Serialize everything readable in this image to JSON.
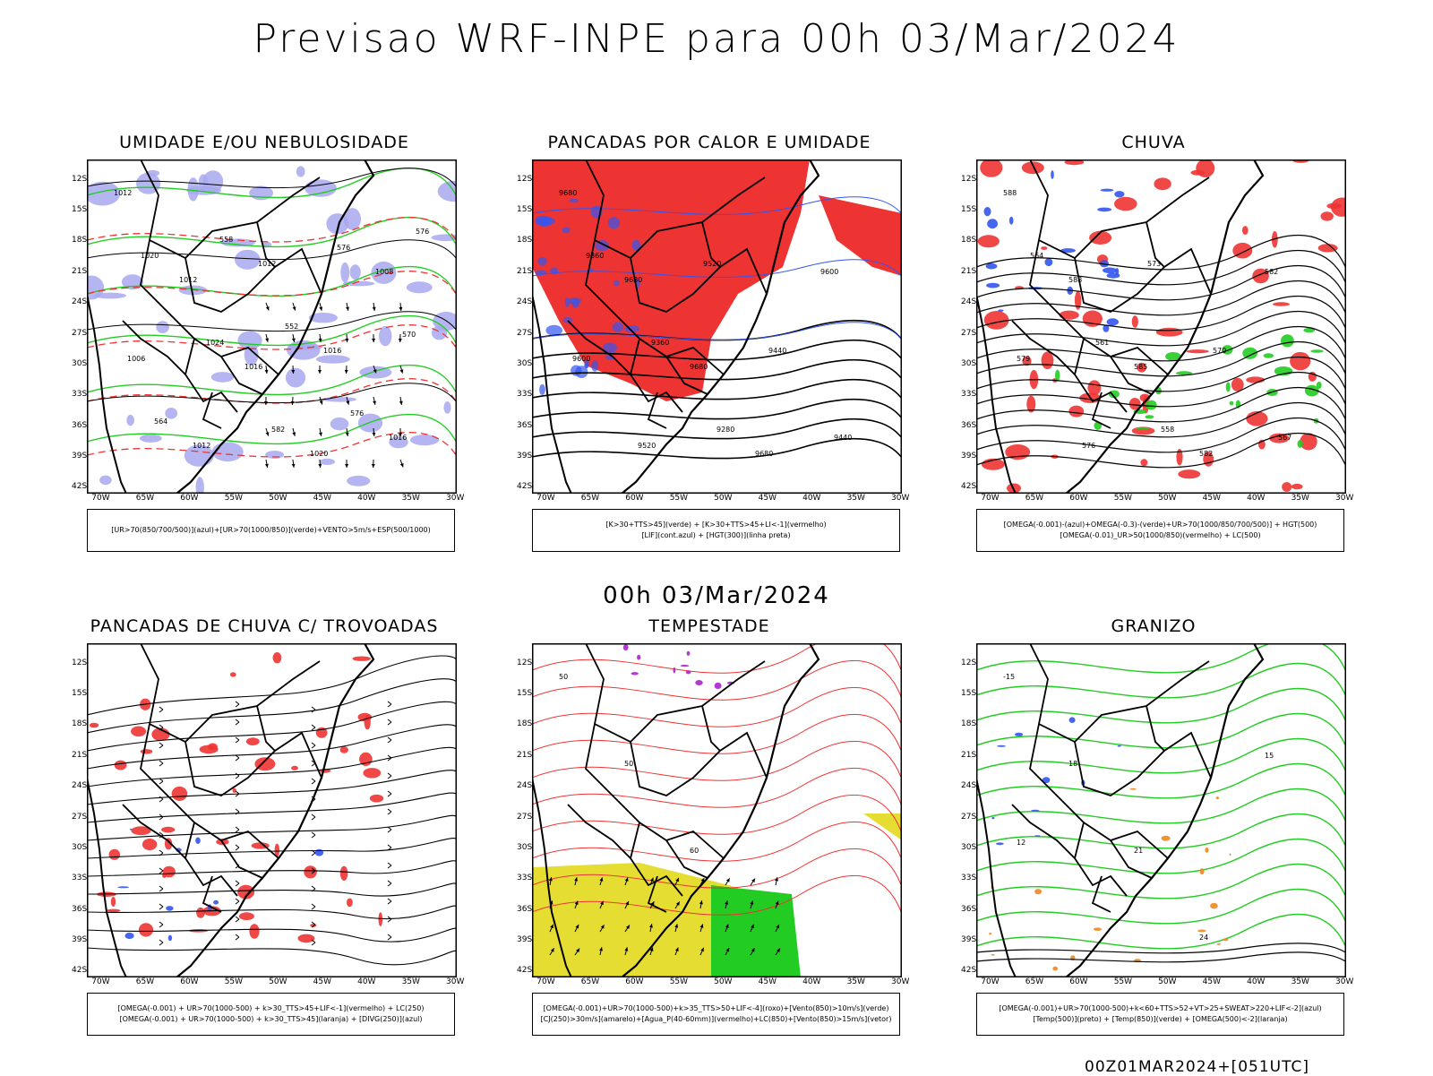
{
  "title": "Previsao WRF-INPE  para 00h 03/Mar/2024",
  "middle_label": "00h 03/Mar/2024",
  "footer": "00Z01MAR2024+[051UTC]",
  "lat_ticks": [
    "12S",
    "15S",
    "18S",
    "21S",
    "24S",
    "27S",
    "30S",
    "33S",
    "36S",
    "39S",
    "42S"
  ],
  "lon_ticks": [
    "70W",
    "65W",
    "60W",
    "55W",
    "50W",
    "45W",
    "40W",
    "35W",
    "30W"
  ],
  "colors": {
    "green": "#22cc22",
    "red": "#ee3333",
    "blue": "#3355ee",
    "lavender": "#a8a8ee",
    "yellow": "#e6dd33",
    "purple": "#aa22cc",
    "orange": "#ee8822"
  },
  "panels": [
    {
      "id": "umidade",
      "title": "UMIDADE E/OU NEBULOSIDADE",
      "legend": [
        "[UR>70(850/700/500)](azul)+[UR>70(1000/850)](verde)+VENTO>5m/s+ESP(500/1000)"
      ],
      "labels": [
        "1012",
        "1012",
        "1016",
        "1020",
        "1008",
        "1006",
        "1012",
        "1012",
        "1016",
        "1016",
        "1020",
        "1024",
        "582",
        "576",
        "570",
        "564",
        "558",
        "552",
        "576",
        "576"
      ]
    },
    {
      "id": "pancadas_calor",
      "title": "PANCADAS POR CALOR E UMIDADE",
      "legend": [
        "[K>30+TTS>45](verde) + [K>30+TTS>45+LI<-1](vermelho)",
        "[LIF](cont.azul) + [HGT(300)](linha preta)"
      ],
      "labels": [
        "9680",
        "9680",
        "9680",
        "9680",
        "9600",
        "9600",
        "9520",
        "9520",
        "9440",
        "9440",
        "9360",
        "9360",
        "9280"
      ]
    },
    {
      "id": "chuva",
      "title": "CHUVA",
      "legend": [
        "[OMEGA(-0.001)-(azul)+OMEGA(-0.3)-(verde)+UR>70(1000/850/700/500)] + HGT(500)",
        "[OMEGA(-0.01)_UR>50(1000/850)(vermelho) + LC(500)"
      ],
      "labels": [
        "588",
        "588",
        "585",
        "582",
        "582",
        "579",
        "576",
        "573",
        "570",
        "567",
        "564",
        "561",
        "558"
      ]
    },
    {
      "id": "pancadas_trovoadas",
      "title": "PANCADAS DE CHUVA C/ TROVOADAS",
      "legend": [
        "[OMEGA(-0.001) + UR>70(1000-500) + k>30_TTS>45+LIF<-1](vermelho) + LC(250)",
        "[OMEGA(-0.001) + UR>70(1000-500) + k>30_TTS>45](laranja) + [DIVG(250)](azul)"
      ],
      "labels": []
    },
    {
      "id": "tempestade",
      "title": "TEMPESTADE",
      "legend": [
        "[OMEGA(-0.001)+UR>70(1000-500)+k>35_TTS>50+LIF<-4](roxo)+[Vento(850)>10m/s](verde)",
        "[CJ(250)>30m/s](amarelo)+[Agua_P(40-60mm)](vermelho)+LC(850)+[Vento(850)>15m/s](vetor)"
      ],
      "labels": [
        "50",
        "50",
        "60"
      ]
    },
    {
      "id": "granizo",
      "title": "GRANIZO",
      "legend": [
        "[OMEGA(-0.001)+UR>70(1000-500)+k<60+TTS>52+VT>25+SWEAT>220+LIF<-2](azul)",
        "[Temp(500)](preto) + [Temp(850)](verde) + [OMEGA(500)<-2](laranja)"
      ],
      "labels": [
        "-15",
        "18",
        "21",
        "24",
        "15",
        "12"
      ]
    }
  ]
}
